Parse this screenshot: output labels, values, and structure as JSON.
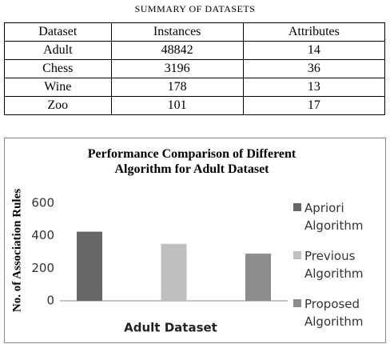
{
  "table": {
    "caption": "SUMMARY OF DATASETS",
    "header": [
      "Dataset",
      "Instances",
      "Attributes"
    ],
    "rows": [
      [
        "Adult",
        48842,
        14
      ],
      [
        "Chess",
        3196,
        36
      ],
      [
        "Wine",
        178,
        13
      ],
      [
        "Zoo",
        101,
        17
      ]
    ]
  },
  "chart_data": {
    "type": "bar",
    "title": "Performance Comparison of Different Algorithm for Adult Dataset",
    "y_label": "No. of Association Rules",
    "categories": [
      "Adult Dataset"
    ],
    "series": [
      {
        "name": "Apriori Algorithm",
        "color": "#666666",
        "values": [
          425
        ]
      },
      {
        "name": "Previous Algorithm",
        "color": "#bfbfbf",
        "values": [
          350
        ]
      },
      {
        "name": "Proposed Algorithm",
        "color": "#8c8c8c",
        "values": [
          290
        ]
      }
    ],
    "ylim": [
      0,
      600
    ],
    "yticks": [
      0,
      200,
      400,
      600
    ],
    "grid": false,
    "legend": "right"
  }
}
